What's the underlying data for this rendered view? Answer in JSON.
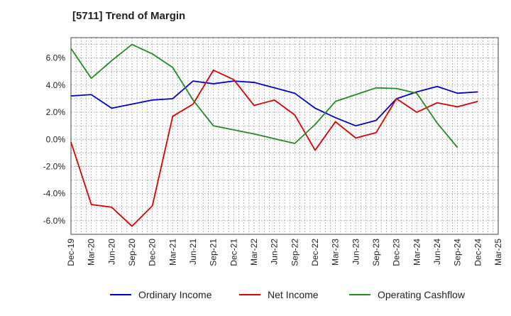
{
  "chart_data": {
    "type": "line",
    "title": "[5711]  Trend of Margin",
    "xlabel": "",
    "ylabel": "",
    "ylim": [
      -7.0,
      7.5
    ],
    "y_ticks": [
      -6.0,
      -4.0,
      -2.0,
      0.0,
      2.0,
      4.0,
      6.0
    ],
    "y_tick_labels": [
      "-6.0%",
      "-4.0%",
      "-2.0%",
      "0.0%",
      "2.0%",
      "4.0%",
      "6.0%"
    ],
    "x_tick_labels": [
      "Dec-19",
      "Mar-20",
      "Jun-20",
      "Sep-20",
      "Dec-20",
      "Mar-21",
      "Jun-21",
      "Sep-21",
      "Dec-21",
      "Mar-22",
      "Jun-22",
      "Sep-22",
      "Dec-22",
      "Mar-23",
      "Jun-23",
      "Sep-23",
      "Dec-23",
      "Mar-24",
      "Jun-24",
      "Sep-24",
      "Dec-24",
      "Mar-25"
    ],
    "grid": true,
    "legend_position": "bottom",
    "series": [
      {
        "name": "Ordinary Income",
        "color": "#0000cc",
        "values": [
          3.2,
          3.3,
          2.3,
          2.6,
          2.9,
          3.0,
          4.3,
          4.1,
          4.3,
          4.2,
          3.8,
          3.4,
          2.3,
          1.6,
          1.0,
          1.4,
          3.0,
          3.5,
          3.9,
          3.4,
          3.5,
          null
        ]
      },
      {
        "name": "Net Income",
        "color": "#dd0000",
        "values": [
          -0.2,
          -4.8,
          -5.0,
          -6.4,
          -4.9,
          1.7,
          2.6,
          5.1,
          4.4,
          2.5,
          2.9,
          1.8,
          -0.8,
          1.3,
          0.1,
          0.5,
          3.0,
          2.0,
          2.7,
          2.4,
          2.8,
          null
        ]
      },
      {
        "name": "Operating Cashflow",
        "color": "#228b22",
        "values": [
          6.7,
          4.5,
          5.8,
          7.0,
          6.3,
          5.3,
          2.9,
          1.0,
          0.7,
          0.4,
          0.05,
          -0.3,
          1.1,
          2.8,
          3.3,
          3.8,
          3.75,
          3.4,
          1.2,
          -0.6,
          null,
          null
        ]
      }
    ]
  }
}
